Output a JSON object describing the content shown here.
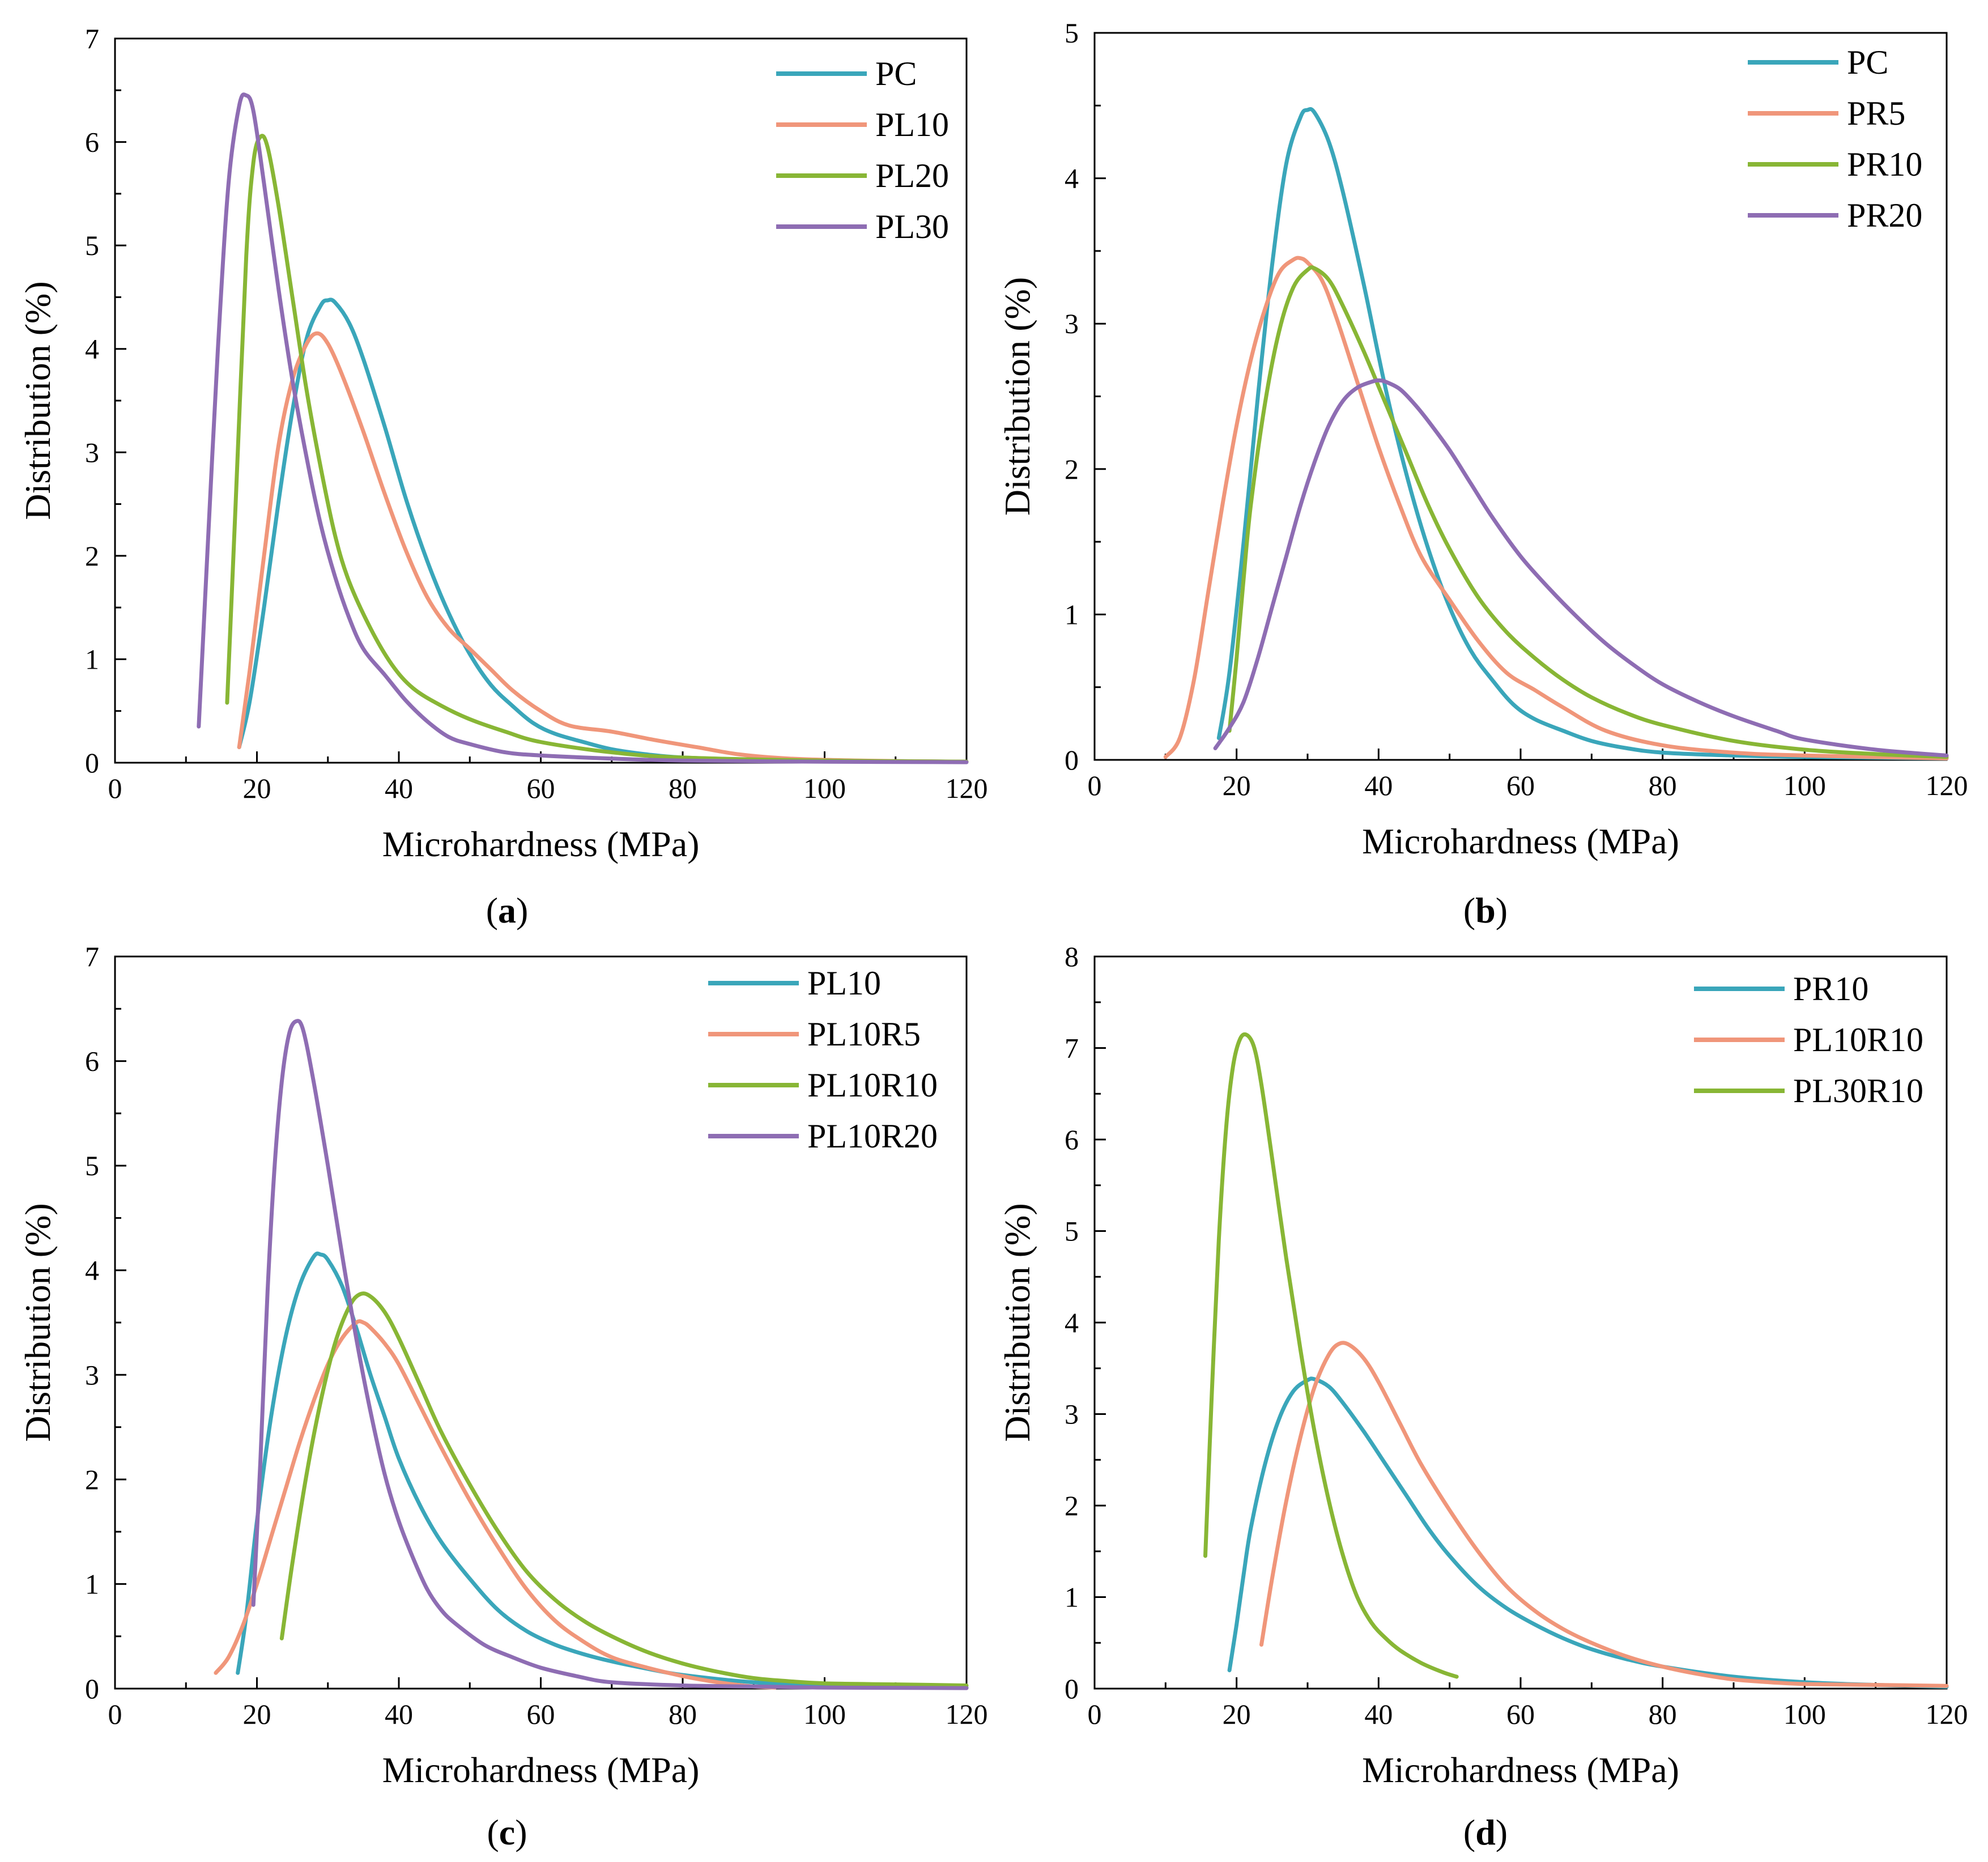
{
  "colors": {
    "teal": "#3aa6ba",
    "salmon": "#f0967a",
    "green": "#88b635",
    "purple": "#8e6db3"
  },
  "chart_data": [
    {
      "type": "line",
      "caption_open": "(",
      "caption_letter": "a",
      "caption_close": ")",
      "xlabel": "Microhardness (MPa)",
      "ylabel": "Distribution (%)",
      "xlim": [
        0,
        120
      ],
      "ylim": [
        0,
        7
      ],
      "xticks": [
        0,
        20,
        40,
        60,
        80,
        100,
        120
      ],
      "yticks": [
        0,
        1,
        2,
        3,
        4,
        5,
        6,
        7
      ],
      "legend_position": "top-right",
      "series": [
        {
          "name": "PC",
          "color": "teal",
          "x": [
            17.5,
            19,
            21,
            23,
            25,
            27,
            29,
            30,
            31,
            33,
            35,
            38,
            41,
            44,
            47,
            50,
            53,
            56,
            59,
            62,
            66,
            70,
            75,
            80,
            90,
            100,
            120
          ],
          "y": [
            0.15,
            0.6,
            1.5,
            2.5,
            3.4,
            4.1,
            4.42,
            4.47,
            4.45,
            4.25,
            3.9,
            3.25,
            2.55,
            1.95,
            1.45,
            1.05,
            0.75,
            0.55,
            0.38,
            0.28,
            0.2,
            0.13,
            0.08,
            0.05,
            0.03,
            0.02,
            0.01
          ]
        },
        {
          "name": "PL10",
          "color": "salmon",
          "x": [
            17.5,
            19,
            21,
            23,
            25,
            27,
            28.5,
            30,
            32,
            35,
            38,
            41,
            44,
            47,
            50,
            53,
            56,
            60,
            64,
            70,
            76,
            82,
            88,
            95,
            105,
            120
          ],
          "y": [
            0.15,
            0.9,
            2.0,
            3.05,
            3.7,
            4.05,
            4.15,
            4.05,
            3.75,
            3.2,
            2.6,
            2.05,
            1.6,
            1.3,
            1.1,
            0.9,
            0.7,
            0.5,
            0.36,
            0.3,
            0.22,
            0.15,
            0.08,
            0.04,
            0.02,
            0.01
          ]
        },
        {
          "name": "PL20",
          "color": "green",
          "x": [
            15.8,
            17,
            18.5,
            19.5,
            20.5,
            21.5,
            23,
            25,
            27,
            29,
            31,
            33,
            36,
            39,
            42,
            46,
            50,
            55,
            60,
            70,
            80,
            100,
            120
          ],
          "y": [
            0.58,
            2.5,
            4.9,
            5.8,
            6.05,
            5.95,
            5.4,
            4.5,
            3.6,
            2.85,
            2.2,
            1.75,
            1.3,
            0.95,
            0.72,
            0.55,
            0.42,
            0.3,
            0.2,
            0.1,
            0.05,
            0.02,
            0.01
          ]
        },
        {
          "name": "PL30",
          "color": "purple",
          "x": [
            11.8,
            13,
            14.5,
            16,
            17.5,
            18.5,
            19.5,
            21,
            23,
            25,
            27,
            29,
            31,
            33,
            35,
            38,
            41,
            44,
            47,
            50,
            55,
            60,
            70,
            80,
            100,
            120
          ],
          "y": [
            0.35,
            2.0,
            4.0,
            5.6,
            6.35,
            6.45,
            6.3,
            5.6,
            4.6,
            3.7,
            2.95,
            2.3,
            1.8,
            1.4,
            1.1,
            0.85,
            0.6,
            0.4,
            0.25,
            0.18,
            0.1,
            0.07,
            0.04,
            0.02,
            0.01,
            0.005
          ]
        }
      ]
    },
    {
      "type": "line",
      "caption_open": "(",
      "caption_letter": "b",
      "caption_close": ")",
      "xlabel": "Microhardness (MPa)",
      "ylabel": "Distribution (%)",
      "xlim": [
        0,
        120
      ],
      "ylim": [
        0,
        5
      ],
      "xticks": [
        0,
        20,
        40,
        60,
        80,
        100,
        120
      ],
      "yticks": [
        0,
        1,
        2,
        3,
        4,
        5
      ],
      "legend_position": "top-right",
      "series": [
        {
          "name": "PC",
          "color": "teal",
          "x": [
            17.5,
            19,
            21,
            23,
            25,
            27,
            29,
            30,
            31,
            33,
            35,
            38,
            41,
            44,
            47,
            50,
            53,
            56,
            59,
            62,
            66,
            70,
            75,
            80,
            90,
            100,
            120
          ],
          "y": [
            0.15,
            0.6,
            1.5,
            2.5,
            3.4,
            4.1,
            4.42,
            4.47,
            4.45,
            4.25,
            3.9,
            3.25,
            2.55,
            1.95,
            1.45,
            1.05,
            0.75,
            0.55,
            0.38,
            0.28,
            0.2,
            0.13,
            0.08,
            0.05,
            0.03,
            0.02,
            0.01
          ]
        },
        {
          "name": "PR5",
          "color": "salmon",
          "x": [
            10,
            12,
            14,
            16,
            18,
            20,
            22,
            24,
            26,
            28,
            29,
            30,
            32,
            34,
            37,
            40,
            43,
            46,
            50,
            54,
            58,
            62,
            66,
            72,
            80,
            90,
            100,
            120
          ],
          "y": [
            0.02,
            0.15,
            0.55,
            1.15,
            1.75,
            2.3,
            2.75,
            3.1,
            3.35,
            3.44,
            3.45,
            3.42,
            3.3,
            3.05,
            2.6,
            2.15,
            1.75,
            1.4,
            1.1,
            0.82,
            0.6,
            0.48,
            0.36,
            0.2,
            0.1,
            0.05,
            0.03,
            0.01
          ]
        },
        {
          "name": "PR10",
          "color": "green",
          "x": [
            19,
            20,
            21,
            22,
            24,
            26,
            28,
            30,
            31,
            33,
            35,
            38,
            41,
            44,
            47,
            50,
            54,
            58,
            62,
            66,
            70,
            75,
            80,
            90,
            100,
            110,
            120
          ],
          "y": [
            0.2,
            0.7,
            1.25,
            1.75,
            2.45,
            2.95,
            3.25,
            3.37,
            3.38,
            3.3,
            3.12,
            2.8,
            2.45,
            2.1,
            1.75,
            1.45,
            1.12,
            0.88,
            0.7,
            0.55,
            0.43,
            0.32,
            0.24,
            0.13,
            0.07,
            0.04,
            0.02
          ]
        },
        {
          "name": "PR20",
          "color": "purple",
          "x": [
            17,
            19,
            21,
            23,
            25,
            27,
            29,
            31,
            33,
            35,
            37,
            39,
            40,
            41,
            43,
            45,
            47,
            50,
            53,
            56,
            60,
            64,
            68,
            72,
            76,
            80,
            85,
            90,
            96,
            100,
            110,
            120
          ],
          "y": [
            0.08,
            0.22,
            0.4,
            0.7,
            1.05,
            1.4,
            1.75,
            2.05,
            2.3,
            2.47,
            2.56,
            2.6,
            2.61,
            2.6,
            2.55,
            2.45,
            2.33,
            2.13,
            1.9,
            1.67,
            1.4,
            1.18,
            0.98,
            0.8,
            0.65,
            0.52,
            0.4,
            0.3,
            0.2,
            0.14,
            0.07,
            0.03
          ]
        }
      ]
    },
    {
      "type": "line",
      "caption_open": "(",
      "caption_letter": "c",
      "caption_close": ")",
      "xlabel": "Microhardness (MPa)",
      "ylabel": "Distribution (%)",
      "xlim": [
        0,
        120
      ],
      "ylim": [
        0,
        7
      ],
      "xticks": [
        0,
        20,
        40,
        60,
        80,
        100,
        120
      ],
      "yticks": [
        0,
        1,
        2,
        3,
        4,
        5,
        6,
        7
      ],
      "legend_position": "top-right",
      "series": [
        {
          "name": "PL10",
          "color": "teal",
          "x": [
            17.3,
            18.5,
            20,
            22,
            24,
            26,
            28,
            29,
            30,
            32,
            34,
            36,
            38,
            40,
            43,
            46,
            50,
            54,
            58,
            62,
            66,
            70,
            75,
            80,
            90,
            100,
            120
          ],
          "y": [
            0.15,
            0.7,
            1.6,
            2.6,
            3.35,
            3.85,
            4.13,
            4.15,
            4.1,
            3.85,
            3.45,
            3.0,
            2.6,
            2.2,
            1.75,
            1.4,
            1.05,
            0.75,
            0.55,
            0.42,
            0.33,
            0.26,
            0.19,
            0.13,
            0.06,
            0.03,
            0.01
          ]
        },
        {
          "name": "PL10R5",
          "color": "salmon",
          "x": [
            14.2,
            16,
            18,
            20,
            22,
            24,
            26,
            28,
            30,
            32,
            34,
            35,
            36,
            38,
            40,
            43,
            46,
            50,
            54,
            58,
            62,
            66,
            70,
            75,
            80,
            85,
            90,
            93
          ],
          "y": [
            0.15,
            0.3,
            0.6,
            1.0,
            1.45,
            1.9,
            2.35,
            2.75,
            3.1,
            3.35,
            3.5,
            3.5,
            3.45,
            3.3,
            3.1,
            2.7,
            2.3,
            1.8,
            1.35,
            0.95,
            0.65,
            0.45,
            0.3,
            0.2,
            0.12,
            0.06,
            0.02,
            0.01
          ]
        },
        {
          "name": "PL10R10",
          "color": "green",
          "x": [
            23.5,
            25,
            27,
            29,
            31,
            33,
            34.5,
            36,
            38,
            40,
            43,
            46,
            50,
            54,
            58,
            62,
            66,
            70,
            75,
            80,
            85,
            90,
            95,
            100,
            110,
            120
          ],
          "y": [
            0.48,
            1.2,
            2.05,
            2.75,
            3.3,
            3.65,
            3.77,
            3.75,
            3.6,
            3.35,
            2.9,
            2.45,
            1.95,
            1.5,
            1.12,
            0.85,
            0.65,
            0.5,
            0.35,
            0.24,
            0.16,
            0.1,
            0.07,
            0.05,
            0.04,
            0.03
          ]
        },
        {
          "name": "PL10R20",
          "color": "purple",
          "x": [
            19.5,
            20.5,
            21.5,
            22.5,
            23.5,
            24.5,
            25.5,
            26.5,
            28,
            30,
            32,
            34,
            36,
            38,
            40,
            42,
            44,
            46,
            48,
            52,
            56,
            60,
            65,
            70,
            80,
            90,
            100,
            120
          ],
          "y": [
            0.8,
            2.2,
            3.8,
            5.0,
            5.8,
            6.25,
            6.38,
            6.3,
            5.8,
            5.0,
            4.15,
            3.35,
            2.65,
            2.05,
            1.6,
            1.25,
            0.95,
            0.75,
            0.62,
            0.42,
            0.3,
            0.2,
            0.12,
            0.06,
            0.03,
            0.02,
            0.01,
            0.005
          ]
        }
      ]
    },
    {
      "type": "line",
      "caption_open": "(",
      "caption_letter": "d",
      "caption_close": ")",
      "xlabel": "Microhardness (MPa)",
      "ylabel": "Distribution (%)",
      "xlim": [
        0,
        120
      ],
      "ylim": [
        0,
        8
      ],
      "xticks": [
        0,
        20,
        40,
        60,
        80,
        100,
        120
      ],
      "yticks": [
        0,
        1,
        2,
        3,
        4,
        5,
        6,
        7,
        8
      ],
      "legend_position": "top-right",
      "series": [
        {
          "name": "PR10",
          "color": "teal",
          "x": [
            19,
            20,
            21,
            22,
            24,
            26,
            28,
            30,
            31,
            33,
            35,
            38,
            41,
            44,
            47,
            50,
            54,
            58,
            62,
            66,
            70,
            75,
            80,
            90,
            100,
            110,
            120
          ],
          "y": [
            0.2,
            0.7,
            1.25,
            1.75,
            2.45,
            2.95,
            3.25,
            3.37,
            3.38,
            3.3,
            3.12,
            2.8,
            2.45,
            2.1,
            1.75,
            1.45,
            1.12,
            0.88,
            0.7,
            0.55,
            0.43,
            0.32,
            0.24,
            0.13,
            0.07,
            0.04,
            0.02
          ]
        },
        {
          "name": "PL10R10",
          "color": "salmon",
          "x": [
            23.5,
            25,
            27,
            29,
            31,
            33,
            34.5,
            36,
            38,
            40,
            43,
            46,
            50,
            54,
            58,
            62,
            66,
            70,
            75,
            80,
            85,
            90,
            95,
            100,
            110,
            120
          ],
          "y": [
            0.48,
            1.2,
            2.05,
            2.75,
            3.3,
            3.65,
            3.77,
            3.75,
            3.6,
            3.35,
            2.9,
            2.45,
            1.95,
            1.5,
            1.12,
            0.85,
            0.65,
            0.5,
            0.35,
            0.24,
            0.16,
            0.1,
            0.07,
            0.05,
            0.04,
            0.03
          ]
        },
        {
          "name": "PL30R10",
          "color": "green",
          "x": [
            15.6,
            16.5,
            17.5,
            18.5,
            19.5,
            20.5,
            21.5,
            22.5,
            23.5,
            25,
            27,
            29,
            31,
            33,
            35,
            37,
            39,
            41,
            43,
            46,
            49,
            51
          ],
          "y": [
            1.45,
            3.2,
            4.9,
            6.1,
            6.8,
            7.1,
            7.14,
            7.0,
            6.6,
            5.8,
            4.7,
            3.7,
            2.8,
            2.05,
            1.45,
            1.0,
            0.72,
            0.55,
            0.42,
            0.28,
            0.18,
            0.13
          ]
        }
      ]
    }
  ]
}
